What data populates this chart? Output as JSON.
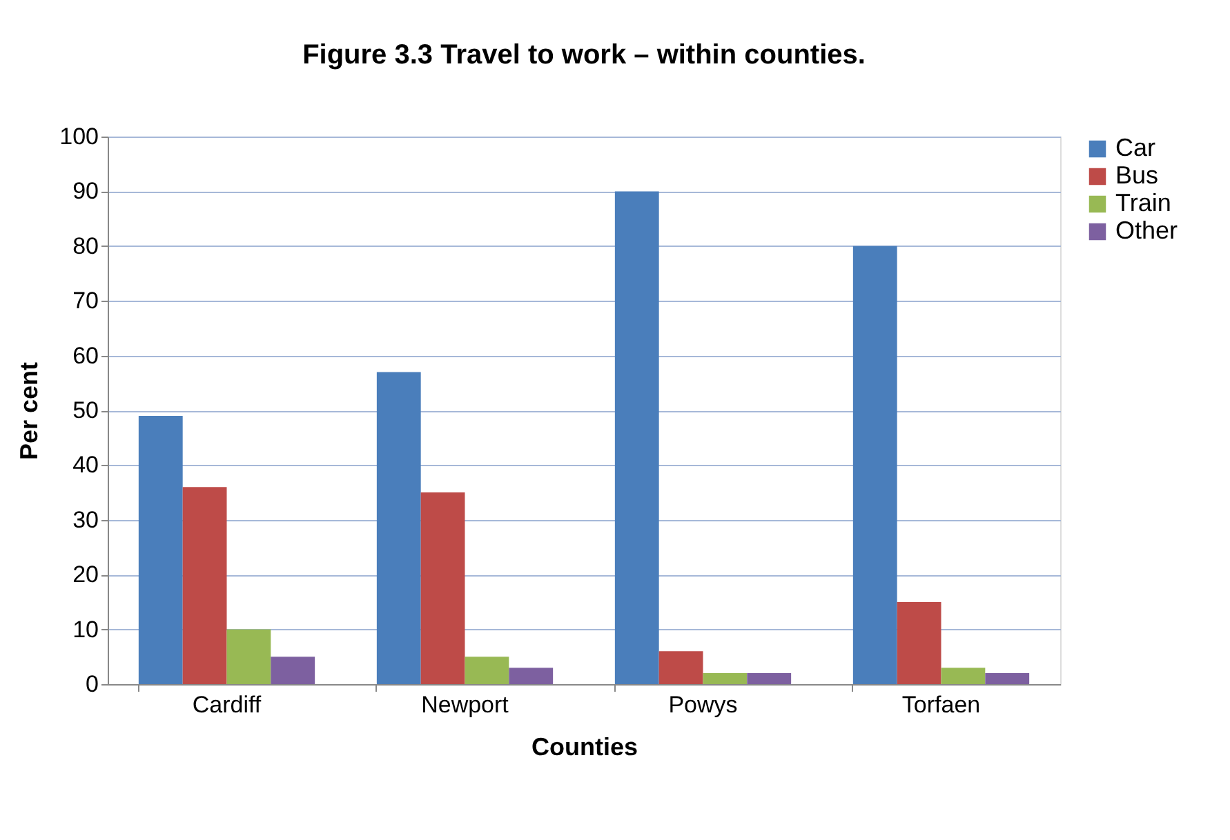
{
  "chart_data": {
    "type": "bar",
    "title": "Figure 3.3    Travel to work – within counties.",
    "xlabel": "Counties",
    "ylabel": "Per cent",
    "categories": [
      "Cardiff",
      "Newport",
      "Powys",
      "Torfaen"
    ],
    "series": [
      {
        "name": "Car",
        "color": "#4a7ebb",
        "values": [
          49,
          57,
          90,
          80
        ]
      },
      {
        "name": "Bus",
        "color": "#be4b48",
        "values": [
          36,
          35,
          6,
          15
        ]
      },
      {
        "name": "Train",
        "color": "#98b954",
        "values": [
          10,
          5,
          2,
          3
        ]
      },
      {
        "name": "Other",
        "color": "#7d60a0",
        "values": [
          5,
          3,
          2,
          2
        ]
      }
    ],
    "ylim": [
      0,
      100
    ],
    "yticks": [
      0,
      10,
      20,
      30,
      40,
      50,
      60,
      70,
      80,
      90,
      100
    ],
    "grid": "y",
    "legend": "right"
  }
}
